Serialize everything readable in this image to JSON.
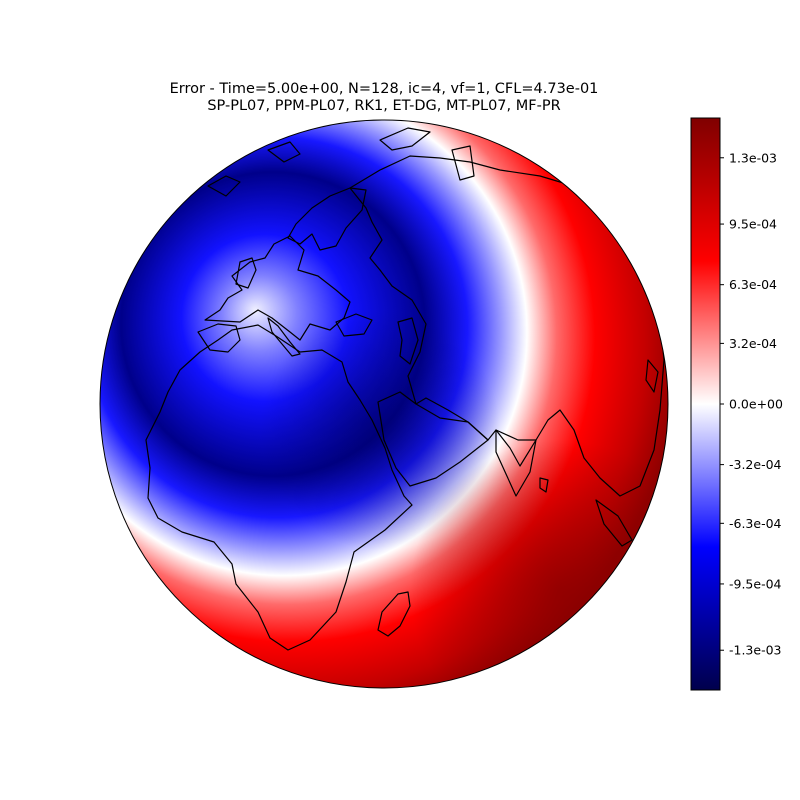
{
  "title_line1": "Error - Time=5.00e+00, N=128, ic=4, vf=1, CFL=4.73e-01",
  "title_line2": "SP-PL07, PPM-PL07, RK1, ET-DG, MT-PL07, MF-PR",
  "colormap": {
    "name": "seismic",
    "colors": [
      "#00004c",
      "#0000ff",
      "#ffffff",
      "#ff0000",
      "#800000"
    ]
  },
  "colorbar": {
    "vmin": -0.00151,
    "vmax": 0.00151,
    "ticks": [
      {
        "value": 0.0013,
        "label": "1.3e-03"
      },
      {
        "value": 0.00095,
        "label": "9.5e-04"
      },
      {
        "value": 0.00063,
        "label": "6.3e-04"
      },
      {
        "value": 0.00032,
        "label": "3.2e-04"
      },
      {
        "value": 0.0,
        "label": "0.0e+00"
      },
      {
        "value": -0.00032,
        "label": "-3.2e-04"
      },
      {
        "value": -0.00063,
        "label": "-6.3e-04"
      },
      {
        "value": -0.00095,
        "label": "-9.5e-04"
      },
      {
        "value": -0.0013,
        "label": "-1.3e-03"
      }
    ]
  },
  "map": {
    "projection": "orthographic",
    "field": "error",
    "min_center": {
      "lon": 32,
      "lat": 28
    },
    "max_center": {
      "lon": 76,
      "lat": -18
    },
    "coastline_color": "#000000"
  }
}
